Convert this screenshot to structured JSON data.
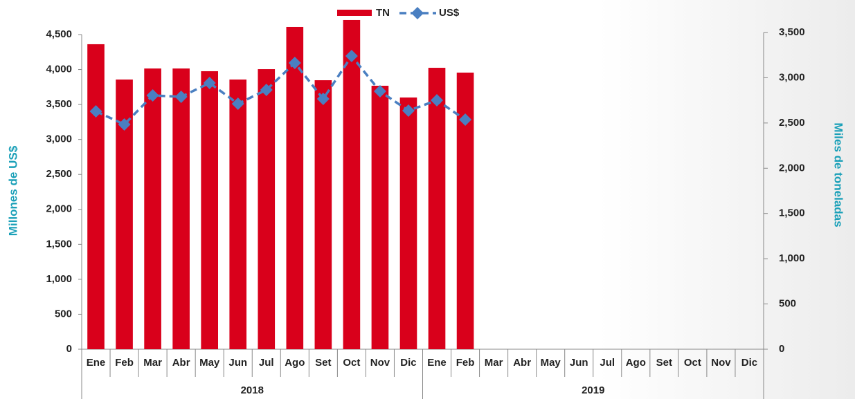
{
  "chart_data": {
    "type": "bar_line",
    "categories": [
      "Ene",
      "Feb",
      "Mar",
      "Abr",
      "May",
      "Jun",
      "Jul",
      "Ago",
      "Set",
      "Oct",
      "Nov",
      "Dic",
      "Ene",
      "Feb",
      "Mar",
      "Abr",
      "May",
      "Jun",
      "Jul",
      "Ago",
      "Set",
      "Oct",
      "Nov",
      "Dic"
    ],
    "groups": [
      "2018",
      "2019"
    ],
    "ylabel": "Millones de US$",
    "y2label": "Miles de toneladas",
    "series": [
      {
        "name": "TN",
        "type": "bar",
        "color": "#d9001b",
        "values": [
          4362,
          3857,
          4015,
          4015,
          3976,
          3857,
          4005,
          4609,
          3847,
          4708,
          3768,
          3600,
          4025,
          3956,
          null,
          null,
          null,
          null,
          null,
          null,
          null,
          null,
          null,
          null
        ]
      },
      {
        "name": "US$",
        "type": "line",
        "axis": "y2",
        "color": "#4a7fc1",
        "values": [
          2629,
          2484,
          2805,
          2789,
          2942,
          2713,
          2866,
          3164,
          2766,
          3240,
          2850,
          2636,
          2751,
          2537,
          null,
          null,
          null,
          null,
          null,
          null,
          null,
          null,
          null,
          null
        ]
      }
    ],
    "ylim": [
      0,
      4500
    ],
    "yticks": [
      0,
      500,
      {
        "value": 1000,
        "label": "1,000"
      },
      {
        "value": 1500,
        "label": "1,500"
      },
      {
        "value": 2000,
        "label": "2,000"
      },
      {
        "value": 2500,
        "label": "2,500"
      },
      {
        "value": 3000,
        "label": "3,000"
      },
      {
        "value": 3500,
        "label": "3,500"
      },
      {
        "value": 4000,
        "label": "4,000"
      },
      {
        "value": 4500,
        "label": "4,500"
      }
    ],
    "y2lim": [
      0,
      3500
    ],
    "y2ticks": [
      0,
      500,
      {
        "value": 1000,
        "label": "1,000"
      },
      {
        "value": 1500,
        "label": "1,500"
      },
      {
        "value": 2000,
        "label": "2,000"
      },
      {
        "value": 2500,
        "label": "2,500"
      },
      {
        "value": 3000,
        "label": "3,000"
      },
      {
        "value": 3500,
        "label": "3,500"
      }
    ]
  }
}
